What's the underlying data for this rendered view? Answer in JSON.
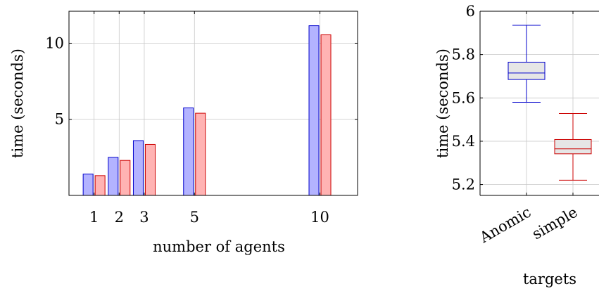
{
  "chart_data": [
    {
      "type": "bar",
      "categories": [
        1,
        2,
        3,
        5,
        10
      ],
      "series": [
        {
          "values": [
            1.4,
            2.5,
            3.6,
            5.75,
            11.15
          ],
          "color": "#0000cc",
          "fill": "#b3b3ff"
        },
        {
          "values": [
            1.3,
            2.3,
            3.35,
            5.4,
            10.55
          ],
          "color": "#cc0000",
          "fill": "#ffb3b3"
        }
      ],
      "xlabel": "number of agents",
      "ylabel": "time (seconds)",
      "xticks": [
        "1",
        "2",
        "3",
        "5",
        "10"
      ],
      "yticks": [
        "5",
        "10"
      ],
      "xlim": [
        0,
        11.5
      ],
      "ylim": [
        0,
        12.1
      ],
      "grid": true
    },
    {
      "type": "boxplot",
      "categories": [
        "Anomic",
        "simple"
      ],
      "boxes": [
        {
          "category": "Anomic",
          "min": 5.58,
          "q1": 5.685,
          "median": 5.715,
          "q3": 5.765,
          "max": 5.935,
          "color": "#0000cc"
        },
        {
          "category": "simple",
          "min": 5.22,
          "q1": 5.342,
          "median": 5.365,
          "q3": 5.408,
          "max": 5.528,
          "color": "#cc0000"
        }
      ],
      "box_fill": "#e6e6e6",
      "xlabel": "targets",
      "ylabel": "time (seconds)",
      "yticks": [
        "5.2",
        "5.4",
        "5.6",
        "5.8",
        "6"
      ],
      "ylim": [
        5.15,
        6.0
      ],
      "grid": true
    }
  ]
}
